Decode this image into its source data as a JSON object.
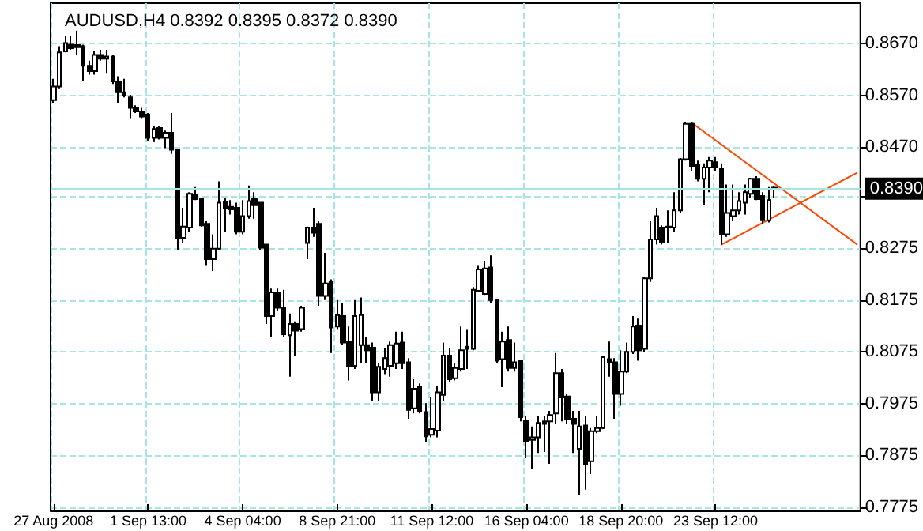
{
  "chart_data": {
    "type": "candlestick",
    "title": "AUDUSD,H4 0.8392 0.8395 0.8372 0.8390",
    "categories": [
      "27 Aug 2008",
      null,
      null,
      null,
      null,
      null,
      null,
      null,
      null,
      null,
      null,
      null,
      null,
      null,
      null,
      null,
      "1 Sep 13:00",
      null,
      null,
      null,
      null,
      null,
      null,
      null,
      null,
      null,
      null,
      null,
      null,
      null,
      null,
      null,
      "4 Sep 04:00",
      null,
      null,
      null,
      null,
      null,
      null,
      null,
      null,
      null,
      null,
      null,
      null,
      null,
      null,
      null,
      "8 Sep 21:00",
      null,
      null,
      null,
      null,
      null,
      null,
      null,
      null,
      null,
      null,
      null,
      null,
      null,
      null,
      null,
      "11 Sep 12:00",
      null,
      null,
      null,
      null,
      null,
      null,
      null,
      null,
      null,
      null,
      null,
      null,
      null,
      null,
      null,
      "16 Sep 04:00",
      null,
      null,
      null,
      null,
      null,
      null,
      null,
      null,
      null,
      null,
      null,
      null,
      null,
      null,
      null,
      "18 Sep 20:00",
      null,
      null,
      null,
      null,
      null,
      null,
      null,
      null,
      null,
      null,
      null,
      null,
      null,
      null,
      null,
      "23 Sep 12:00",
      null,
      null,
      null,
      null,
      null,
      null,
      null,
      null,
      null,
      null,
      null,
      null,
      null,
      null,
      null,
      null,
      null,
      null,
      null,
      null,
      null,
      null,
      null,
      null
    ],
    "ohlc": [
      [
        0.8561,
        0.8602,
        0.8556,
        0.8587
      ],
      [
        0.8587,
        0.8665,
        0.8582,
        0.8653
      ],
      [
        0.8655,
        0.8685,
        0.8653,
        0.8671
      ],
      [
        0.8668,
        0.8685,
        0.8658,
        0.8661
      ],
      [
        0.8667,
        0.8695,
        0.8648,
        0.8663
      ],
      [
        0.8665,
        0.8668,
        0.8597,
        0.8627
      ],
      [
        0.8627,
        0.8637,
        0.861,
        0.8617
      ],
      [
        0.8617,
        0.8655,
        0.861,
        0.8648
      ],
      [
        0.8648,
        0.8658,
        0.8637,
        0.8641
      ],
      [
        0.8641,
        0.8658,
        0.8612,
        0.8645
      ],
      [
        0.8645,
        0.8648,
        0.8592,
        0.8597
      ],
      [
        0.8597,
        0.8607,
        0.8556,
        0.8576
      ],
      [
        0.8576,
        0.8602,
        0.8566,
        0.8571
      ],
      [
        0.8566,
        0.8571,
        0.8526,
        0.8546
      ],
      [
        0.8546,
        0.8551,
        0.8536,
        0.8539
      ],
      [
        0.8539,
        0.8546,
        0.8526,
        0.8529
      ],
      [
        0.8533,
        0.8536,
        0.8482,
        0.8488
      ],
      [
        0.8488,
        0.851,
        0.848,
        0.8505
      ],
      [
        0.8507,
        0.851,
        0.8485,
        0.8488
      ],
      [
        0.8488,
        0.8502,
        0.8468,
        0.8498
      ],
      [
        0.8498,
        0.8536,
        0.8457,
        0.8465
      ],
      [
        0.8465,
        0.8467,
        0.8271,
        0.8295
      ],
      [
        0.8295,
        0.8353,
        0.8285,
        0.8317
      ],
      [
        0.8315,
        0.8383,
        0.8307,
        0.838
      ],
      [
        0.8378,
        0.8393,
        0.8368,
        0.837
      ],
      [
        0.837,
        0.8373,
        0.8317,
        0.8319
      ],
      [
        0.8322,
        0.8327,
        0.8241,
        0.8254
      ],
      [
        0.8254,
        0.8302,
        0.8231,
        0.8274
      ],
      [
        0.8274,
        0.8404,
        0.8271,
        0.8363
      ],
      [
        0.8365,
        0.8373,
        0.8307,
        0.8353
      ],
      [
        0.8355,
        0.8368,
        0.834,
        0.835
      ],
      [
        0.8353,
        0.8363,
        0.8302,
        0.8307
      ],
      [
        0.8307,
        0.8368,
        0.8302,
        0.8337
      ],
      [
        0.8337,
        0.8396,
        0.8332,
        0.8366
      ],
      [
        0.837,
        0.8383,
        0.8332,
        0.8358
      ],
      [
        0.8363,
        0.8363,
        0.8271,
        0.8276
      ],
      [
        0.8282,
        0.8282,
        0.8129,
        0.8144
      ],
      [
        0.8144,
        0.8197,
        0.8104,
        0.819
      ],
      [
        0.819,
        0.8197,
        0.8154,
        0.816
      ],
      [
        0.816,
        0.8195,
        0.8104,
        0.8109
      ],
      [
        0.8107,
        0.8149,
        0.8027,
        0.8129
      ],
      [
        0.8129,
        0.8134,
        0.8068,
        0.8116
      ],
      [
        0.8119,
        0.8164,
        0.8114,
        0.816
      ],
      [
        0.8285,
        0.8317,
        0.8254,
        0.8315
      ],
      [
        0.8315,
        0.8353,
        0.8297,
        0.8305
      ],
      [
        0.8322,
        0.8327,
        0.8164,
        0.8183
      ],
      [
        0.8183,
        0.8266,
        0.8175,
        0.8207
      ],
      [
        0.821,
        0.8215,
        0.8073,
        0.8122
      ],
      [
        0.8124,
        0.8175,
        0.8119,
        0.8146
      ],
      [
        0.8144,
        0.817,
        0.8088,
        0.8093
      ],
      [
        0.8095,
        0.8124,
        0.802,
        0.8048
      ],
      [
        0.8048,
        0.8175,
        0.8042,
        0.8144
      ],
      [
        0.8088,
        0.818,
        0.8053,
        0.8146
      ],
      [
        0.8088,
        0.8104,
        0.8053,
        0.8078
      ],
      [
        0.8083,
        0.8093,
        0.7981,
        0.7997
      ],
      [
        0.7997,
        0.8053,
        0.7981,
        0.8046
      ],
      [
        0.8042,
        0.8083,
        0.8032,
        0.8063
      ],
      [
        0.8048,
        0.8095,
        0.8027,
        0.8088
      ],
      [
        0.8053,
        0.8114,
        0.8042,
        0.8091
      ],
      [
        0.8093,
        0.8114,
        0.8042,
        0.8053
      ],
      [
        0.8055,
        0.8063,
        0.7946,
        0.7963
      ],
      [
        0.7966,
        0.8022,
        0.7956,
        0.8004
      ],
      [
        0.8007,
        0.8014,
        0.7956,
        0.7961
      ],
      [
        0.7959,
        0.7976,
        0.79,
        0.7912
      ],
      [
        0.7915,
        0.7987,
        0.791,
        0.7926
      ],
      [
        0.7923,
        0.801,
        0.791,
        0.7997
      ],
      [
        0.7992,
        0.8093,
        0.7981,
        0.8068
      ],
      [
        0.8068,
        0.8083,
        0.8017,
        0.8022
      ],
      [
        0.8024,
        0.8053,
        0.802,
        0.8044
      ],
      [
        0.8042,
        0.8124,
        0.8037,
        0.8078
      ],
      [
        0.8085,
        0.8119,
        0.8042,
        0.8081
      ],
      [
        0.8081,
        0.82,
        0.8078,
        0.8195
      ],
      [
        0.8193,
        0.8241,
        0.819,
        0.8234
      ],
      [
        0.8187,
        0.8251,
        0.8185,
        0.8236
      ],
      [
        0.8238,
        0.8261,
        0.817,
        0.8175
      ],
      [
        0.8175,
        0.8175,
        0.8053,
        0.8058
      ],
      [
        0.8061,
        0.8114,
        0.8007,
        0.8095
      ],
      [
        0.8098,
        0.8124,
        0.8037,
        0.8044
      ],
      [
        0.8044,
        0.8093,
        0.8037,
        0.8055
      ],
      [
        0.8058,
        0.8058,
        0.7941,
        0.7949
      ],
      [
        0.7943,
        0.7951,
        0.787,
        0.7902
      ],
      [
        0.7905,
        0.7931,
        0.7849,
        0.791
      ],
      [
        0.791,
        0.7951,
        0.788,
        0.7938
      ],
      [
        0.7941,
        0.7951,
        0.7882,
        0.7936
      ],
      [
        0.7941,
        0.7961,
        0.7859,
        0.7953
      ],
      [
        0.7956,
        0.8073,
        0.7936,
        0.8034
      ],
      [
        0.8034,
        0.8042,
        0.7941,
        0.7987
      ],
      [
        0.7989,
        0.7994,
        0.7936,
        0.7946
      ],
      [
        0.7946,
        0.7961,
        0.788,
        0.7936
      ],
      [
        0.7888,
        0.7961,
        0.7798,
        0.7931
      ],
      [
        0.7933,
        0.7951,
        0.7809,
        0.7859
      ],
      [
        0.7864,
        0.7928,
        0.7839,
        0.7922
      ],
      [
        0.7922,
        0.7951,
        0.7918,
        0.7928
      ],
      [
        0.7928,
        0.8068,
        0.7926,
        0.8065
      ],
      [
        0.8061,
        0.8095,
        0.8027,
        0.8055
      ],
      [
        0.8055,
        0.8063,
        0.7946,
        0.7994
      ],
      [
        0.7994,
        0.8078,
        0.7971,
        0.8037
      ],
      [
        0.8037,
        0.8093,
        0.8034,
        0.8075
      ],
      [
        0.8075,
        0.8144,
        0.8071,
        0.8124
      ],
      [
        0.8126,
        0.8139,
        0.8058,
        0.8078
      ],
      [
        0.8081,
        0.822,
        0.8075,
        0.8217
      ],
      [
        0.8217,
        0.8327,
        0.821,
        0.8292
      ],
      [
        0.8292,
        0.8353,
        0.8282,
        0.8337
      ],
      [
        0.8315,
        0.8319,
        0.8282,
        0.8287
      ],
      [
        0.8315,
        0.8348,
        0.8285,
        0.8317
      ],
      [
        0.8315,
        0.8383,
        0.8307,
        0.8348
      ],
      [
        0.8348,
        0.8449,
        0.8343,
        0.8447
      ],
      [
        0.8447,
        0.8518,
        0.8444,
        0.8515
      ],
      [
        0.8515,
        0.8518,
        0.8424,
        0.8434
      ],
      [
        0.8437,
        0.8444,
        0.8404,
        0.8409
      ],
      [
        0.8409,
        0.8439,
        0.8358,
        0.8431
      ],
      [
        0.8431,
        0.8451,
        0.8383,
        0.8444
      ],
      [
        0.8441,
        0.8451,
        0.8424,
        0.8431
      ],
      [
        0.8429,
        0.8439,
        0.8282,
        0.8302
      ],
      [
        0.8302,
        0.8398,
        0.8297,
        0.8343
      ],
      [
        0.8337,
        0.8398,
        0.8327,
        0.8348
      ],
      [
        0.8348,
        0.8383,
        0.834,
        0.8366
      ],
      [
        0.8363,
        0.8398,
        0.834,
        0.8383
      ],
      [
        0.838,
        0.8411,
        0.8373,
        0.8409
      ],
      [
        0.8409,
        0.8414,
        0.8368,
        0.837
      ],
      [
        0.8376,
        0.8383,
        0.8322,
        0.8329
      ],
      [
        0.8329,
        0.8393,
        0.8325,
        0.8368
      ],
      [
        0.8392,
        0.8395,
        0.8372,
        0.839
      ],
      null,
      null,
      null,
      null,
      null,
      null,
      null,
      null,
      null,
      null,
      null,
      null,
      null,
      null
    ],
    "series": [
      {
        "type": "line",
        "color": "#ff4500",
        "values": [
          null,
          null,
          null,
          null,
          null,
          null,
          null,
          null,
          null,
          null,
          null,
          null,
          null,
          null,
          null,
          null,
          null,
          null,
          null,
          null,
          null,
          null,
          null,
          null,
          null,
          null,
          null,
          null,
          null,
          null,
          null,
          null,
          null,
          null,
          null,
          null,
          null,
          null,
          null,
          null,
          null,
          null,
          null,
          null,
          null,
          null,
          null,
          null,
          null,
          null,
          null,
          null,
          null,
          null,
          null,
          null,
          null,
          null,
          null,
          null,
          null,
          null,
          null,
          null,
          null,
          null,
          null,
          null,
          null,
          null,
          null,
          null,
          null,
          null,
          null,
          null,
          null,
          null,
          null,
          null,
          null,
          null,
          null,
          null,
          null,
          null,
          null,
          null,
          null,
          null,
          null,
          null,
          null,
          null,
          null,
          null,
          null,
          null,
          null,
          null,
          null,
          null,
          null,
          null,
          null,
          null,
          null,
          null,
          0.8517,
          null,
          null,
          null,
          null,
          null,
          null,
          null,
          null,
          null,
          null,
          null,
          null,
          null,
          null,
          null,
          null,
          null,
          null,
          null,
          null,
          null,
          null,
          null,
          null,
          null,
          null,
          null,
          0.8282
        ]
      },
      {
        "type": "line",
        "color": "#ff4500",
        "values": [
          null,
          null,
          null,
          null,
          null,
          null,
          null,
          null,
          null,
          null,
          null,
          null,
          null,
          null,
          null,
          null,
          null,
          null,
          null,
          null,
          null,
          null,
          null,
          null,
          null,
          null,
          null,
          null,
          null,
          null,
          null,
          null,
          null,
          null,
          null,
          null,
          null,
          null,
          null,
          null,
          null,
          null,
          null,
          null,
          null,
          null,
          null,
          null,
          null,
          null,
          null,
          null,
          null,
          null,
          null,
          null,
          null,
          null,
          null,
          null,
          null,
          null,
          null,
          null,
          null,
          null,
          null,
          null,
          null,
          null,
          null,
          null,
          null,
          null,
          null,
          null,
          null,
          null,
          null,
          null,
          null,
          null,
          null,
          null,
          null,
          null,
          null,
          null,
          null,
          null,
          null,
          null,
          null,
          null,
          null,
          null,
          null,
          null,
          null,
          null,
          null,
          null,
          null,
          null,
          null,
          null,
          null,
          null,
          null,
          null,
          null,
          null,
          null,
          0.8282,
          null,
          null,
          null,
          null,
          null,
          null,
          null,
          null,
          null,
          null,
          null,
          null,
          null,
          null,
          null,
          null,
          null,
          null,
          null,
          null,
          null,
          null,
          0.8421
        ]
      }
    ],
    "ylim": [
      0.7769,
      0.8748
    ],
    "yticks": [
      {
        "value": 0.7775,
        "label": "0.7775"
      },
      {
        "value": 0.7875,
        "label": "0.7875"
      },
      {
        "value": 0.7975,
        "label": "0.7975"
      },
      {
        "value": 0.8075,
        "label": "0.8075"
      },
      {
        "value": 0.8175,
        "label": "0.8175"
      },
      {
        "value": 0.8275,
        "label": "0.8275"
      },
      {
        "value": 0.8375,
        "label": null
      },
      {
        "value": 0.847,
        "label": "0.8470"
      },
      {
        "value": 0.857,
        "label": "0.8570"
      },
      {
        "value": 0.867,
        "label": "0.8670"
      }
    ],
    "ref_lines": [
      {
        "axis": "y",
        "value": 0.839,
        "label": "0.8390",
        "color": "#a8e4e4"
      }
    ],
    "grid": true,
    "marker": "none",
    "line_style": "solid"
  }
}
